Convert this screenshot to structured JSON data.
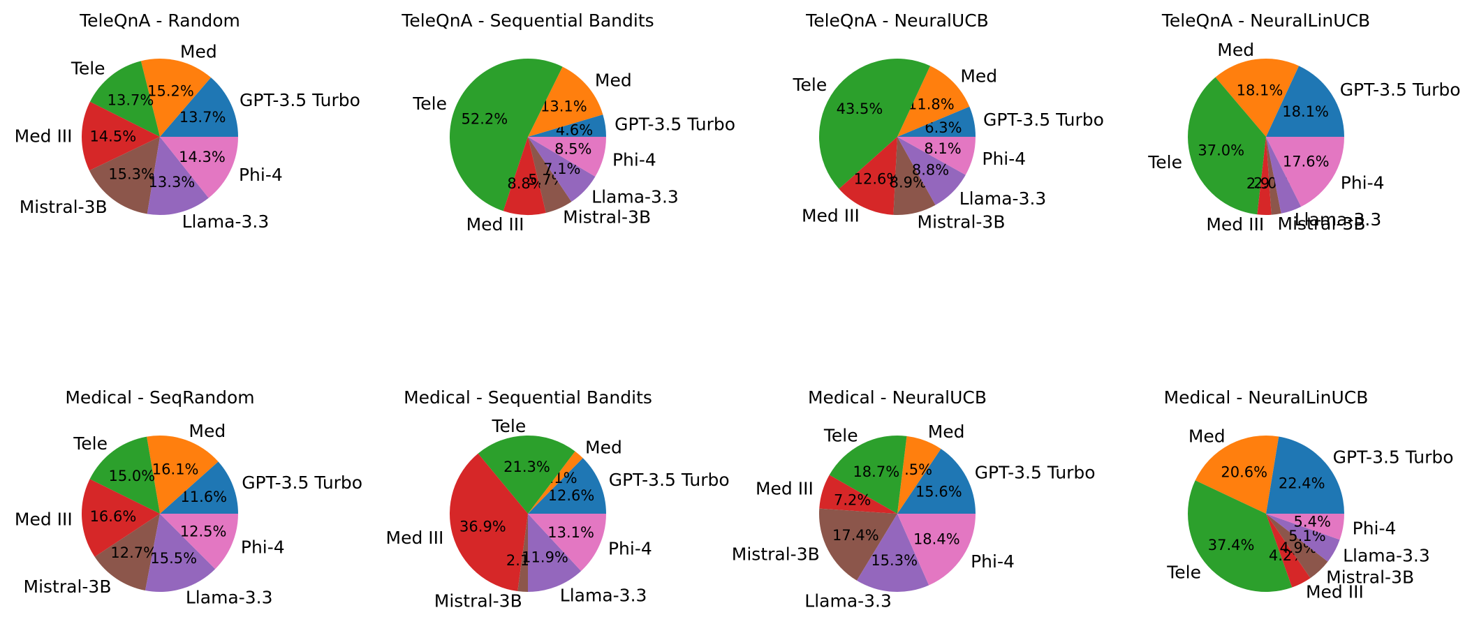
{
  "colors": {
    "GPT-3.5 Turbo": "#1f77b4",
    "Med": "#ff7f0e",
    "Tele": "#2ca02c",
    "Med III": "#d62728",
    "Mistral-3B": "#8c564b",
    "Llama-3.3": "#9467bd",
    "Phi-4": "#e377c2"
  },
  "chart_data": [
    {
      "type": "pie",
      "title": "TeleQnA - Random",
      "labels": [
        "GPT-3.5 Turbo",
        "Med",
        "Tele",
        "Med III",
        "Mistral-3B",
        "Llama-3.3",
        "Phi-4"
      ],
      "values": [
        13.7,
        15.2,
        13.7,
        14.5,
        15.3,
        13.3,
        14.3
      ],
      "pct_labels": [
        "13.7%",
        "15.2%",
        "13.7%",
        "14.5%",
        "15.3%",
        "13.3%",
        "14.3%"
      ]
    },
    {
      "type": "pie",
      "title": "TeleQnA - Sequential Bandits",
      "labels": [
        "GPT-3.5 Turbo",
        "Med",
        "Tele",
        "Med III",
        "Mistral-3B",
        "Llama-3.3",
        "Phi-4"
      ],
      "values": [
        4.6,
        13.1,
        52.2,
        8.8,
        5.7,
        7.1,
        8.5
      ],
      "pct_labels": [
        "4.6%",
        "13.1%",
        "52.2%",
        "8.8%",
        "5.7%",
        "7.1%",
        "8.5%"
      ]
    },
    {
      "type": "pie",
      "title": "TeleQnA - NeuralUCB",
      "labels": [
        "GPT-3.5 Turbo",
        "Med",
        "Tele",
        "Med III",
        "Mistral-3B",
        "Llama-3.3",
        "Phi-4"
      ],
      "values": [
        6.3,
        11.8,
        43.5,
        12.6,
        8.9,
        8.8,
        8.1
      ],
      "pct_labels": [
        "6.3%",
        "11.8%",
        "43.5%",
        "12.6%",
        "8.9%",
        "8.8%",
        "8.1%"
      ]
    },
    {
      "type": "pie",
      "title": "TeleQnA - NeuralLinUCB",
      "labels": [
        "GPT-3.5 Turbo",
        "Med",
        "Tele",
        "Med III",
        "Mistral-3B",
        "Llama-3.3",
        "Phi-4"
      ],
      "values": [
        18.1,
        18.1,
        37.0,
        2.9,
        2.0,
        4.3,
        17.6
      ],
      "pct_labels": [
        "18.1%",
        "18.1%",
        "37.0%",
        "2.9%",
        "2.0%",
        "",
        "17.6%"
      ]
    },
    {
      "type": "pie",
      "title": "Medical - SeqRandom",
      "labels": [
        "GPT-3.5 Turbo",
        "Med",
        "Tele",
        "Med III",
        "Mistral-3B",
        "Llama-3.3",
        "Phi-4"
      ],
      "values": [
        11.6,
        16.1,
        15.0,
        16.6,
        12.7,
        15.5,
        12.5
      ],
      "pct_labels": [
        "11.6%",
        "16.1%",
        "15.0%",
        "16.6%",
        "12.7%",
        "15.5%",
        "12.5%"
      ]
    },
    {
      "type": "pie",
      "title": "Medical - Sequential Bandits",
      "labels": [
        "GPT-3.5 Turbo",
        "Med",
        "Tele",
        "Med III",
        "Mistral-3B",
        "Llama-3.3",
        "Phi-4"
      ],
      "values": [
        12.6,
        2.1,
        21.3,
        36.9,
        2.1,
        11.9,
        13.1
      ],
      "pct_labels": [
        "12.6%",
        "2.1%",
        "21.3%",
        "36.9%",
        "2.1%",
        "11.9%",
        "13.1%"
      ]
    },
    {
      "type": "pie",
      "title": "Medical - NeuralUCB",
      "labels": [
        "GPT-3.5 Turbo",
        "Med",
        "Tele",
        "Med III",
        "Mistral-3B",
        "Llama-3.3",
        "Phi-4"
      ],
      "values": [
        15.6,
        7.5,
        18.7,
        7.2,
        17.4,
        15.3,
        18.4
      ],
      "pct_labels": [
        "15.6%",
        "7.5%",
        "18.7%",
        "7.2%",
        "17.4%",
        "15.3%",
        "18.4%"
      ]
    },
    {
      "type": "pie",
      "title": "Medical - NeuralLinUCB",
      "labels": [
        "GPT-3.5 Turbo",
        "Med",
        "Tele",
        "Med III",
        "Mistral-3B",
        "Llama-3.3",
        "Phi-4"
      ],
      "values": [
        22.4,
        20.6,
        37.4,
        4.2,
        4.9,
        5.1,
        5.4
      ],
      "pct_labels": [
        "22.4%",
        "20.6%",
        "37.4%",
        "4.2%",
        "4.9%",
        "5.1%",
        "5.4%"
      ]
    }
  ]
}
